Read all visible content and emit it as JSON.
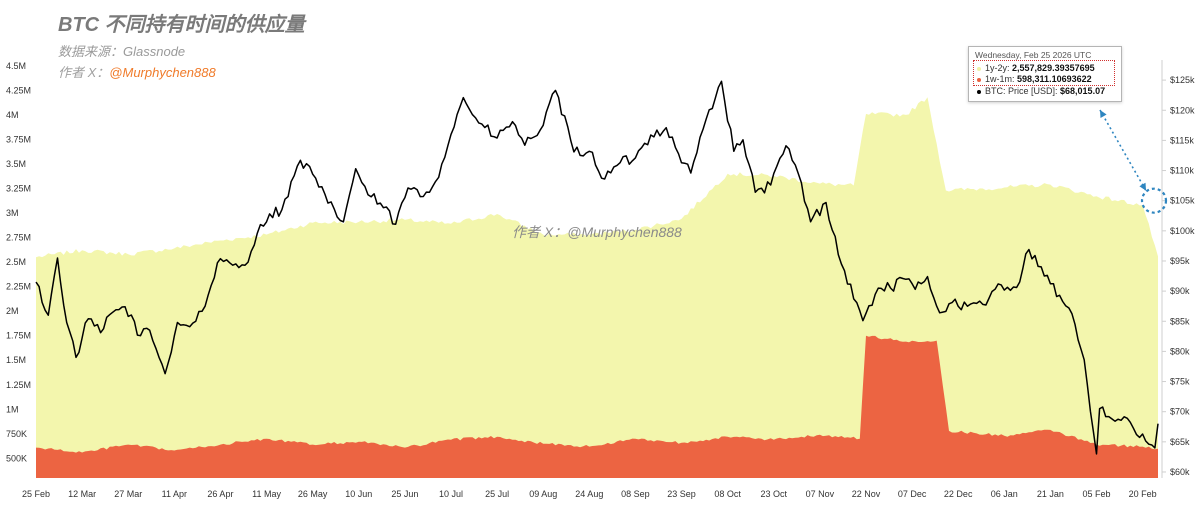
{
  "header": {
    "title": "BTC 不同持有时间的供应量",
    "source": "数据来源：Glassnode",
    "author_prefix": "作者 X：",
    "author_handle": "@Murphychen888"
  },
  "watermark": "作者 X：@Murphychen888",
  "tooltip": {
    "date": "Wednesday, Feb 25 2026 UTC",
    "rows": [
      {
        "label": "1y-2y:",
        "value": "2,557,829.39357695",
        "color": "#f0f2a6"
      },
      {
        "label": "1w-1m:",
        "value": "598,311.10693622",
        "color": "#ea6040"
      },
      {
        "label": "BTC: Price [USD]:",
        "value": "$68,015.07",
        "color": "#000000"
      }
    ]
  },
  "colors": {
    "supply_1y2y": "#f3f6ad",
    "supply_1w1m": "#ec6442",
    "price": "#000000",
    "annotation": "#2f86c0",
    "axis_text": "#333333"
  },
  "chart_data": {
    "type": "area",
    "x_axis": {
      "type": "date",
      "range": [
        "2025-02-25",
        "2026-02-25"
      ],
      "tick_labels": [
        "25 Feb",
        "12 Mar",
        "27 Mar",
        "11 Apr",
        "26 Apr",
        "11 May",
        "26 May",
        "10 Jun",
        "25 Jun",
        "10 Jul",
        "25 Jul",
        "09 Aug",
        "24 Aug",
        "08 Sep",
        "23 Sep",
        "08 Oct",
        "23 Oct",
        "07 Nov",
        "22 Nov",
        "07 Dec",
        "22 Dec",
        "06 Jan",
        "21 Jan",
        "05 Feb",
        "20 Feb"
      ]
    },
    "y_axis_left": {
      "label": "",
      "range": [
        300000,
        4600000
      ],
      "tick_labels": [
        "500K",
        "750K",
        "1M",
        "1.25M",
        "1.5M",
        "1.75M",
        "2M",
        "2.25M",
        "2.5M",
        "2.75M",
        "3M",
        "3.25M",
        "3.5M",
        "3.75M",
        "4M",
        "4.25M",
        "4.5M"
      ],
      "tick_values": [
        500000,
        750000,
        1000000,
        1250000,
        1500000,
        1750000,
        2000000,
        2250000,
        2500000,
        2750000,
        3000000,
        3250000,
        3500000,
        3750000,
        4000000,
        4250000,
        4500000
      ]
    },
    "y_axis_right": {
      "label": "",
      "range": [
        59000,
        129000
      ],
      "tick_labels": [
        "$60k",
        "$65k",
        "$70k",
        "$75k",
        "$80k",
        "$85k",
        "$90k",
        "$95k",
        "$100k",
        "$105k",
        "$110k",
        "$115k",
        "$120k",
        "$125k"
      ],
      "tick_values": [
        60000,
        65000,
        70000,
        75000,
        80000,
        85000,
        90000,
        95000,
        100000,
        105000,
        110000,
        115000,
        120000,
        125000
      ]
    },
    "series": [
      {
        "name": "1y-2y",
        "kind": "area",
        "axis": "left",
        "points": [
          [
            "2025-02-25",
            2550000
          ],
          [
            "2025-03-12",
            2620000
          ],
          [
            "2025-03-27",
            2580000
          ],
          [
            "2025-04-11",
            2640000
          ],
          [
            "2025-04-26",
            2720000
          ],
          [
            "2025-05-11",
            2780000
          ],
          [
            "2025-05-26",
            2900000
          ],
          [
            "2025-06-10",
            2910000
          ],
          [
            "2025-06-25",
            2930000
          ],
          [
            "2025-07-10",
            2890000
          ],
          [
            "2025-07-25",
            2990000
          ],
          [
            "2025-08-09",
            2780000
          ],
          [
            "2025-08-24",
            2780000
          ],
          [
            "2025-09-08",
            2830000
          ],
          [
            "2025-09-23",
            2940000
          ],
          [
            "2025-10-08",
            3400000
          ],
          [
            "2025-10-23",
            3380000
          ],
          [
            "2025-11-07",
            3300000
          ],
          [
            "2025-11-18",
            3280000
          ],
          [
            "2025-11-22",
            4010000
          ],
          [
            "2025-12-05",
            4000000
          ],
          [
            "2025-12-12",
            4180000
          ],
          [
            "2025-12-18",
            3230000
          ],
          [
            "2026-01-06",
            3260000
          ],
          [
            "2026-01-21",
            3290000
          ],
          [
            "2026-02-05",
            3170000
          ],
          [
            "2026-02-20",
            3080000
          ],
          [
            "2026-02-25",
            2557829
          ]
        ]
      },
      {
        "name": "1w-1m",
        "kind": "area",
        "axis": "left",
        "points": [
          [
            "2025-02-25",
            610000
          ],
          [
            "2025-03-12",
            560000
          ],
          [
            "2025-03-27",
            640000
          ],
          [
            "2025-04-11",
            580000
          ],
          [
            "2025-04-26",
            640000
          ],
          [
            "2025-05-11",
            700000
          ],
          [
            "2025-05-26",
            640000
          ],
          [
            "2025-06-10",
            670000
          ],
          [
            "2025-06-25",
            610000
          ],
          [
            "2025-07-10",
            690000
          ],
          [
            "2025-07-25",
            720000
          ],
          [
            "2025-08-09",
            650000
          ],
          [
            "2025-08-24",
            620000
          ],
          [
            "2025-09-08",
            700000
          ],
          [
            "2025-09-23",
            660000
          ],
          [
            "2025-10-08",
            720000
          ],
          [
            "2025-10-23",
            690000
          ],
          [
            "2025-11-07",
            740000
          ],
          [
            "2025-11-20",
            700000
          ],
          [
            "2025-11-22",
            1750000
          ],
          [
            "2025-12-05",
            1690000
          ],
          [
            "2025-12-15",
            1700000
          ],
          [
            "2025-12-19",
            780000
          ],
          [
            "2026-01-06",
            730000
          ],
          [
            "2026-01-21",
            790000
          ],
          [
            "2026-02-05",
            640000
          ],
          [
            "2026-02-20",
            620000
          ],
          [
            "2026-02-25",
            598311
          ]
        ]
      },
      {
        "name": "BTC: Price [USD]",
        "kind": "line",
        "axis": "right",
        "points": [
          [
            "2025-02-25",
            91500
          ],
          [
            "2025-03-01",
            86000
          ],
          [
            "2025-03-04",
            95500
          ],
          [
            "2025-03-07",
            84800
          ],
          [
            "2025-03-10",
            79000
          ],
          [
            "2025-03-14",
            85400
          ],
          [
            "2025-03-18",
            83100
          ],
          [
            "2025-03-22",
            86500
          ],
          [
            "2025-03-26",
            87400
          ],
          [
            "2025-03-31",
            82600
          ],
          [
            "2025-04-03",
            83500
          ],
          [
            "2025-04-08",
            76300
          ],
          [
            "2025-04-12",
            84800
          ],
          [
            "2025-04-16",
            84100
          ],
          [
            "2025-04-21",
            87500
          ],
          [
            "2025-04-25",
            94700
          ],
          [
            "2025-04-30",
            94300
          ],
          [
            "2025-05-04",
            94300
          ],
          [
            "2025-05-08",
            99600
          ],
          [
            "2025-05-12",
            102800
          ],
          [
            "2025-05-16",
            103500
          ],
          [
            "2025-05-22",
            111700
          ],
          [
            "2025-05-26",
            109400
          ],
          [
            "2025-05-31",
            104600
          ],
          [
            "2025-06-05",
            101500
          ],
          [
            "2025-06-09",
            110300
          ],
          [
            "2025-06-13",
            106000
          ],
          [
            "2025-06-17",
            104600
          ],
          [
            "2025-06-22",
            101100
          ],
          [
            "2025-06-26",
            107100
          ],
          [
            "2025-07-01",
            105700
          ],
          [
            "2025-07-05",
            108200
          ],
          [
            "2025-07-10",
            116000
          ],
          [
            "2025-07-14",
            122100
          ],
          [
            "2025-07-19",
            117900
          ],
          [
            "2025-07-25",
            115400
          ],
          [
            "2025-07-30",
            118100
          ],
          [
            "2025-08-03",
            114200
          ],
          [
            "2025-08-09",
            117500
          ],
          [
            "2025-08-13",
            123300
          ],
          [
            "2025-08-19",
            113100
          ],
          [
            "2025-08-24",
            113200
          ],
          [
            "2025-08-29",
            108600
          ],
          [
            "2025-09-03",
            111300
          ],
          [
            "2025-09-08",
            112100
          ],
          [
            "2025-09-13",
            115900
          ],
          [
            "2025-09-18",
            117100
          ],
          [
            "2025-09-22",
            112800
          ],
          [
            "2025-09-26",
            109600
          ],
          [
            "2025-10-01",
            118500
          ],
          [
            "2025-10-06",
            124800
          ],
          [
            "2025-10-10",
            113200
          ],
          [
            "2025-10-13",
            115100
          ],
          [
            "2025-10-17",
            106400
          ],
          [
            "2025-10-22",
            107600
          ],
          [
            "2025-10-27",
            114100
          ],
          [
            "2025-10-31",
            109500
          ],
          [
            "2025-11-04",
            101500
          ],
          [
            "2025-11-09",
            104700
          ],
          [
            "2025-11-14",
            94500
          ],
          [
            "2025-11-21",
            85100
          ],
          [
            "2025-11-26",
            90500
          ],
          [
            "2025-11-30",
            90500
          ],
          [
            "2025-12-04",
            92100
          ],
          [
            "2025-12-08",
            90300
          ],
          [
            "2025-12-12",
            92400
          ],
          [
            "2025-12-16",
            86400
          ],
          [
            "2025-12-20",
            88100
          ],
          [
            "2025-12-25",
            87500
          ],
          [
            "2025-12-31",
            87700
          ],
          [
            "2026-01-04",
            91200
          ],
          [
            "2026-01-10",
            90600
          ],
          [
            "2026-01-14",
            96900
          ],
          [
            "2026-01-19",
            92500
          ],
          [
            "2026-01-24",
            89300
          ],
          [
            "2026-01-29",
            84500
          ],
          [
            "2026-02-01",
            78600
          ],
          [
            "2026-02-05",
            63000
          ],
          [
            "2026-02-06",
            70500
          ],
          [
            "2026-02-10",
            68800
          ],
          [
            "2026-02-15",
            68900
          ],
          [
            "2026-02-18",
            66200
          ],
          [
            "2026-02-22",
            64600
          ],
          [
            "2026-02-24",
            64000
          ],
          [
            "2026-02-25",
            68015
          ]
        ]
      }
    ],
    "annotations": [
      {
        "kind": "highlight-circle",
        "x": "2026-02-25",
        "y_axis": "right",
        "y": 105000
      },
      {
        "kind": "dotted-double-arrow",
        "from": "highlight-circle",
        "to": "tooltip"
      }
    ],
    "legend": "none",
    "grid": false
  }
}
